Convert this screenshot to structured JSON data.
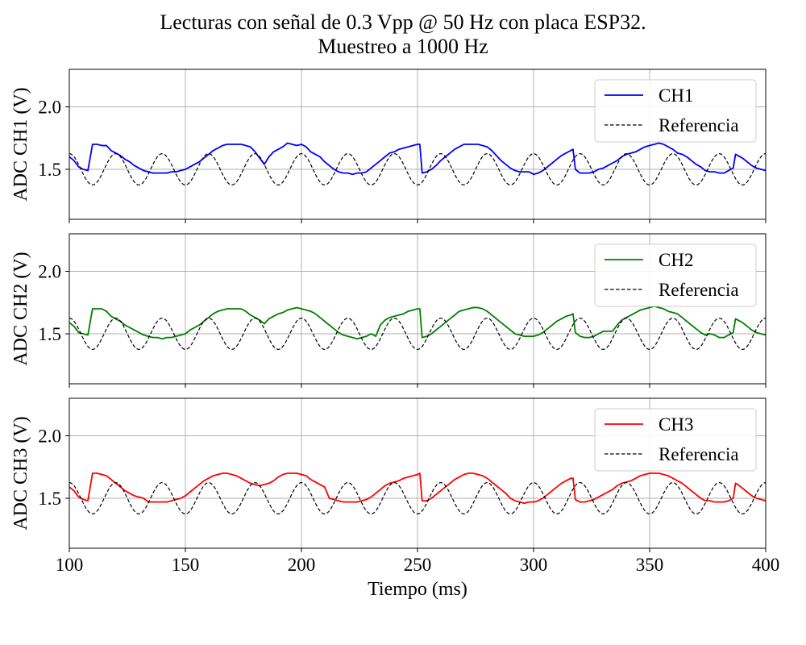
{
  "figure": {
    "title_lines": [
      "Lecturas con señal de 0.3 Vpp @ 50 Hz con placa ESP32.",
      "Muestreo a 1000 Hz"
    ]
  },
  "chart_data": [
    {
      "type": "line",
      "ylabel": "ADC CH1 (V)",
      "xlim": [
        100,
        400
      ],
      "ylim": [
        1.1,
        2.3
      ],
      "yticks": [
        "2.0",
        "1.5"
      ],
      "ytick_values": [
        2.0,
        1.5
      ],
      "xticks": [
        "100",
        "150",
        "200",
        "250",
        "300",
        "350",
        "400"
      ],
      "xtick_values": [
        100,
        150,
        200,
        250,
        300,
        350,
        400
      ],
      "show_xtick_labels": false,
      "grid": true,
      "legend_position": "top-right",
      "series": [
        {
          "name": "CH1",
          "color": "#0000ff",
          "style": "solid",
          "x": [
            100,
            102,
            104,
            106,
            108,
            110,
            112,
            114,
            116,
            118,
            120,
            122,
            124,
            126,
            128,
            130,
            132,
            134,
            136,
            138,
            140,
            142,
            144,
            146,
            148,
            150,
            152,
            154,
            156,
            158,
            160,
            162,
            164,
            166,
            168,
            170,
            172,
            174,
            176,
            178,
            180,
            182,
            184,
            186,
            188,
            190,
            192,
            194,
            196,
            198,
            200,
            202,
            204,
            206,
            208,
            210,
            212,
            214,
            216,
            218,
            220,
            222,
            224,
            226,
            228,
            230,
            232,
            234,
            236,
            238,
            240,
            242,
            244,
            246,
            248,
            250,
            251,
            252,
            254,
            256,
            258,
            260,
            262,
            264,
            266,
            268,
            270,
            272,
            274,
            276,
            278,
            280,
            282,
            284,
            286,
            288,
            290,
            292,
            294,
            296,
            298,
            300,
            302,
            304,
            306,
            308,
            310,
            312,
            314,
            316,
            317,
            318,
            320,
            322,
            324,
            326,
            328,
            330,
            332,
            334,
            336,
            338,
            340,
            342,
            344,
            346,
            348,
            350,
            352,
            354,
            356,
            358,
            360,
            362,
            364,
            366,
            368,
            370,
            372,
            374,
            376,
            378,
            380,
            382,
            384,
            386,
            387,
            388,
            390,
            392,
            394,
            396,
            398,
            400
          ],
          "y": [
            1.6,
            1.57,
            1.52,
            1.5,
            1.49,
            1.7,
            1.7,
            1.69,
            1.69,
            1.65,
            1.63,
            1.61,
            1.58,
            1.56,
            1.53,
            1.51,
            1.49,
            1.48,
            1.47,
            1.47,
            1.47,
            1.47,
            1.48,
            1.48,
            1.49,
            1.5,
            1.52,
            1.54,
            1.56,
            1.59,
            1.62,
            1.65,
            1.67,
            1.69,
            1.7,
            1.7,
            1.7,
            1.7,
            1.69,
            1.68,
            1.64,
            1.59,
            1.54,
            1.6,
            1.64,
            1.66,
            1.68,
            1.71,
            1.7,
            1.69,
            1.7,
            1.68,
            1.64,
            1.62,
            1.6,
            1.56,
            1.53,
            1.5,
            1.48,
            1.47,
            1.47,
            1.46,
            1.47,
            1.47,
            1.48,
            1.51,
            1.54,
            1.57,
            1.6,
            1.63,
            1.64,
            1.66,
            1.67,
            1.68,
            1.69,
            1.7,
            1.7,
            1.47,
            1.48,
            1.5,
            1.53,
            1.57,
            1.6,
            1.63,
            1.66,
            1.68,
            1.7,
            1.7,
            1.7,
            1.7,
            1.69,
            1.68,
            1.65,
            1.61,
            1.57,
            1.54,
            1.51,
            1.49,
            1.48,
            1.48,
            1.48,
            1.46,
            1.47,
            1.49,
            1.52,
            1.55,
            1.58,
            1.61,
            1.63,
            1.65,
            1.66,
            1.5,
            1.47,
            1.47,
            1.47,
            1.48,
            1.5,
            1.51,
            1.53,
            1.55,
            1.57,
            1.6,
            1.62,
            1.63,
            1.64,
            1.66,
            1.68,
            1.69,
            1.7,
            1.71,
            1.7,
            1.68,
            1.66,
            1.63,
            1.62,
            1.6,
            1.57,
            1.54,
            1.52,
            1.49,
            1.48,
            1.48,
            1.47,
            1.47,
            1.49,
            1.51,
            1.62,
            1.61,
            1.59,
            1.56,
            1.53,
            1.51,
            1.5,
            1.49
          ]
        },
        {
          "name": "Referencia",
          "color": "#000000",
          "style": "dashed",
          "offset": 1.5,
          "amplitude": 0.125,
          "frequency_hz": 50
        }
      ]
    },
    {
      "type": "line",
      "ylabel": "ADC CH2 (V)",
      "xlim": [
        100,
        400
      ],
      "ylim": [
        1.1,
        2.3
      ],
      "yticks": [
        "2.0",
        "1.5"
      ],
      "ytick_values": [
        2.0,
        1.5
      ],
      "xticks": [
        "100",
        "150",
        "200",
        "250",
        "300",
        "350",
        "400"
      ],
      "xtick_values": [
        100,
        150,
        200,
        250,
        300,
        350,
        400
      ],
      "show_xtick_labels": false,
      "grid": true,
      "legend_position": "top-right",
      "series": [
        {
          "name": "CH2",
          "color": "#008000",
          "style": "solid",
          "x": [
            100,
            102,
            104,
            106,
            108,
            110,
            112,
            114,
            116,
            118,
            120,
            122,
            124,
            126,
            128,
            130,
            132,
            134,
            136,
            138,
            140,
            142,
            144,
            146,
            148,
            150,
            152,
            154,
            156,
            158,
            160,
            162,
            164,
            166,
            168,
            170,
            172,
            174,
            176,
            178,
            180,
            182,
            184,
            186,
            188,
            190,
            192,
            194,
            196,
            198,
            200,
            202,
            204,
            206,
            208,
            210,
            212,
            214,
            216,
            218,
            220,
            222,
            224,
            226,
            228,
            230,
            232,
            234,
            236,
            238,
            240,
            242,
            244,
            246,
            248,
            250,
            251,
            252,
            254,
            256,
            258,
            260,
            262,
            264,
            266,
            268,
            270,
            272,
            274,
            276,
            278,
            280,
            282,
            284,
            286,
            288,
            290,
            292,
            294,
            296,
            298,
            300,
            302,
            304,
            306,
            308,
            310,
            312,
            314,
            316,
            317,
            318,
            320,
            322,
            324,
            326,
            328,
            330,
            332,
            334,
            336,
            338,
            340,
            342,
            344,
            346,
            348,
            350,
            352,
            354,
            356,
            358,
            360,
            362,
            364,
            366,
            368,
            370,
            372,
            374,
            376,
            378,
            380,
            382,
            384,
            386,
            387,
            388,
            390,
            392,
            394,
            396,
            398,
            400
          ],
          "y": [
            1.59,
            1.56,
            1.51,
            1.5,
            1.49,
            1.7,
            1.7,
            1.7,
            1.68,
            1.64,
            1.62,
            1.6,
            1.57,
            1.55,
            1.53,
            1.51,
            1.49,
            1.48,
            1.47,
            1.47,
            1.46,
            1.47,
            1.47,
            1.48,
            1.49,
            1.5,
            1.53,
            1.55,
            1.57,
            1.6,
            1.63,
            1.66,
            1.68,
            1.69,
            1.7,
            1.7,
            1.7,
            1.7,
            1.68,
            1.65,
            1.63,
            1.61,
            1.58,
            1.62,
            1.64,
            1.66,
            1.67,
            1.69,
            1.7,
            1.71,
            1.7,
            1.69,
            1.68,
            1.66,
            1.63,
            1.6,
            1.57,
            1.54,
            1.51,
            1.49,
            1.48,
            1.47,
            1.46,
            1.47,
            1.48,
            1.5,
            1.48,
            1.57,
            1.61,
            1.63,
            1.64,
            1.65,
            1.66,
            1.68,
            1.69,
            1.7,
            1.7,
            1.47,
            1.48,
            1.5,
            1.53,
            1.56,
            1.59,
            1.62,
            1.65,
            1.68,
            1.69,
            1.7,
            1.71,
            1.71,
            1.7,
            1.68,
            1.65,
            1.62,
            1.59,
            1.56,
            1.53,
            1.5,
            1.49,
            1.48,
            1.48,
            1.48,
            1.49,
            1.51,
            1.54,
            1.57,
            1.6,
            1.62,
            1.64,
            1.65,
            1.66,
            1.51,
            1.48,
            1.47,
            1.47,
            1.48,
            1.5,
            1.52,
            1.52,
            1.52,
            1.57,
            1.61,
            1.63,
            1.65,
            1.67,
            1.69,
            1.7,
            1.71,
            1.72,
            1.71,
            1.7,
            1.68,
            1.67,
            1.66,
            1.63,
            1.6,
            1.57,
            1.54,
            1.51,
            1.49,
            1.5,
            1.49,
            1.47,
            1.47,
            1.49,
            1.51,
            1.62,
            1.61,
            1.59,
            1.56,
            1.53,
            1.51,
            1.5,
            1.49
          ]
        },
        {
          "name": "Referencia",
          "color": "#000000",
          "style": "dashed",
          "offset": 1.5,
          "amplitude": 0.125,
          "frequency_hz": 50
        }
      ]
    },
    {
      "type": "line",
      "ylabel": "ADC CH3 (V)",
      "xlabel": "Tiempo (ms)",
      "xlim": [
        100,
        400
      ],
      "ylim": [
        1.1,
        2.3
      ],
      "yticks": [
        "2.0",
        "1.5"
      ],
      "ytick_values": [
        2.0,
        1.5
      ],
      "xticks": [
        "100",
        "150",
        "200",
        "250",
        "300",
        "350",
        "400"
      ],
      "xtick_values": [
        100,
        150,
        200,
        250,
        300,
        350,
        400
      ],
      "show_xtick_labels": true,
      "grid": true,
      "legend_position": "top-right",
      "series": [
        {
          "name": "CH3",
          "color": "#ff0000",
          "style": "solid",
          "x": [
            100,
            102,
            104,
            106,
            108,
            110,
            112,
            114,
            116,
            118,
            120,
            122,
            124,
            126,
            128,
            130,
            132,
            134,
            136,
            138,
            140,
            142,
            144,
            146,
            148,
            150,
            152,
            154,
            156,
            158,
            160,
            162,
            164,
            166,
            168,
            170,
            172,
            174,
            176,
            178,
            180,
            182,
            184,
            186,
            188,
            190,
            192,
            194,
            196,
            198,
            200,
            202,
            204,
            206,
            208,
            210,
            212,
            214,
            216,
            218,
            220,
            222,
            224,
            226,
            228,
            230,
            232,
            234,
            236,
            238,
            240,
            242,
            244,
            246,
            248,
            250,
            251,
            252,
            254,
            256,
            258,
            260,
            262,
            264,
            266,
            268,
            270,
            272,
            274,
            276,
            278,
            280,
            282,
            284,
            286,
            288,
            290,
            292,
            294,
            296,
            298,
            300,
            302,
            304,
            306,
            308,
            310,
            312,
            314,
            316,
            317,
            318,
            320,
            322,
            324,
            326,
            328,
            330,
            332,
            334,
            336,
            338,
            340,
            342,
            344,
            346,
            348,
            350,
            352,
            354,
            356,
            358,
            360,
            362,
            364,
            366,
            368,
            370,
            372,
            374,
            376,
            378,
            380,
            382,
            384,
            386,
            387,
            388,
            390,
            392,
            394,
            396,
            398,
            400
          ],
          "y": [
            1.59,
            1.56,
            1.51,
            1.49,
            1.48,
            1.7,
            1.7,
            1.69,
            1.68,
            1.65,
            1.62,
            1.59,
            1.56,
            1.54,
            1.52,
            1.51,
            1.5,
            1.47,
            1.47,
            1.47,
            1.47,
            1.47,
            1.48,
            1.49,
            1.5,
            1.52,
            1.55,
            1.58,
            1.61,
            1.64,
            1.66,
            1.68,
            1.69,
            1.7,
            1.7,
            1.69,
            1.68,
            1.66,
            1.64,
            1.62,
            1.61,
            1.6,
            1.61,
            1.62,
            1.64,
            1.67,
            1.69,
            1.7,
            1.7,
            1.7,
            1.69,
            1.68,
            1.65,
            1.63,
            1.61,
            1.59,
            1.5,
            1.49,
            1.48,
            1.47,
            1.47,
            1.47,
            1.47,
            1.48,
            1.49,
            1.51,
            1.54,
            1.57,
            1.6,
            1.62,
            1.63,
            1.64,
            1.66,
            1.67,
            1.68,
            1.69,
            1.7,
            1.48,
            1.48,
            1.5,
            1.53,
            1.56,
            1.59,
            1.62,
            1.65,
            1.67,
            1.69,
            1.7,
            1.7,
            1.69,
            1.68,
            1.66,
            1.63,
            1.6,
            1.57,
            1.54,
            1.5,
            1.48,
            1.47,
            1.46,
            1.47,
            1.47,
            1.48,
            1.5,
            1.53,
            1.56,
            1.59,
            1.62,
            1.64,
            1.66,
            1.66,
            1.49,
            1.47,
            1.47,
            1.48,
            1.49,
            1.51,
            1.53,
            1.55,
            1.57,
            1.6,
            1.62,
            1.63,
            1.64,
            1.66,
            1.68,
            1.69,
            1.7,
            1.7,
            1.7,
            1.69,
            1.68,
            1.66,
            1.64,
            1.62,
            1.59,
            1.56,
            1.53,
            1.5,
            1.48,
            1.48,
            1.47,
            1.47,
            1.47,
            1.48,
            1.5,
            1.62,
            1.61,
            1.58,
            1.55,
            1.52,
            1.5,
            1.49,
            1.48
          ]
        },
        {
          "name": "Referencia",
          "color": "#000000",
          "style": "dashed",
          "offset": 1.5,
          "amplitude": 0.125,
          "frequency_hz": 50
        }
      ]
    }
  ]
}
